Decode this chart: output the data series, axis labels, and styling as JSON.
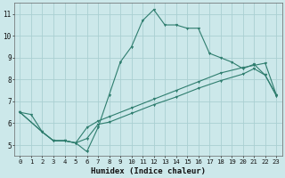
{
  "xlabel": "Humidex (Indice chaleur)",
  "bg_color": "#cce8ea",
  "line_color": "#2e7d6e",
  "grid_color": "#aacfd2",
  "xlim": [
    -0.5,
    23.5
  ],
  "ylim": [
    4.5,
    11.5
  ],
  "xticks": [
    0,
    1,
    2,
    3,
    4,
    5,
    6,
    7,
    8,
    9,
    10,
    11,
    12,
    13,
    14,
    15,
    16,
    17,
    18,
    19,
    20,
    21,
    22,
    23
  ],
  "yticks": [
    5,
    6,
    7,
    8,
    9,
    10,
    11
  ],
  "line1_x": [
    0,
    1,
    2,
    3,
    4,
    5,
    6,
    7,
    8,
    9,
    10,
    11,
    12,
    13,
    14,
    15,
    16,
    17,
    18,
    19,
    20,
    21,
    22,
    23
  ],
  "line1_y": [
    6.5,
    6.4,
    5.6,
    5.2,
    5.2,
    5.1,
    4.7,
    5.8,
    7.3,
    8.8,
    9.5,
    10.7,
    11.2,
    10.5,
    10.5,
    10.35,
    10.35,
    9.2,
    9.0,
    8.8,
    8.5,
    8.7,
    8.2,
    7.3
  ],
  "line2_x": [
    0,
    2,
    3,
    4,
    5,
    6,
    7,
    8,
    10,
    12,
    14,
    16,
    18,
    20,
    21,
    22,
    23
  ],
  "line2_y": [
    6.5,
    5.6,
    5.2,
    5.2,
    5.1,
    5.8,
    6.1,
    6.3,
    6.7,
    7.1,
    7.5,
    7.9,
    8.3,
    8.55,
    8.65,
    8.75,
    7.3
  ],
  "line3_x": [
    0,
    2,
    3,
    4,
    5,
    6,
    7,
    8,
    10,
    12,
    14,
    16,
    18,
    20,
    21,
    22,
    23
  ],
  "line3_y": [
    6.5,
    5.6,
    5.2,
    5.2,
    5.1,
    5.3,
    5.95,
    6.05,
    6.45,
    6.85,
    7.2,
    7.6,
    7.95,
    8.25,
    8.5,
    8.2,
    7.25
  ]
}
